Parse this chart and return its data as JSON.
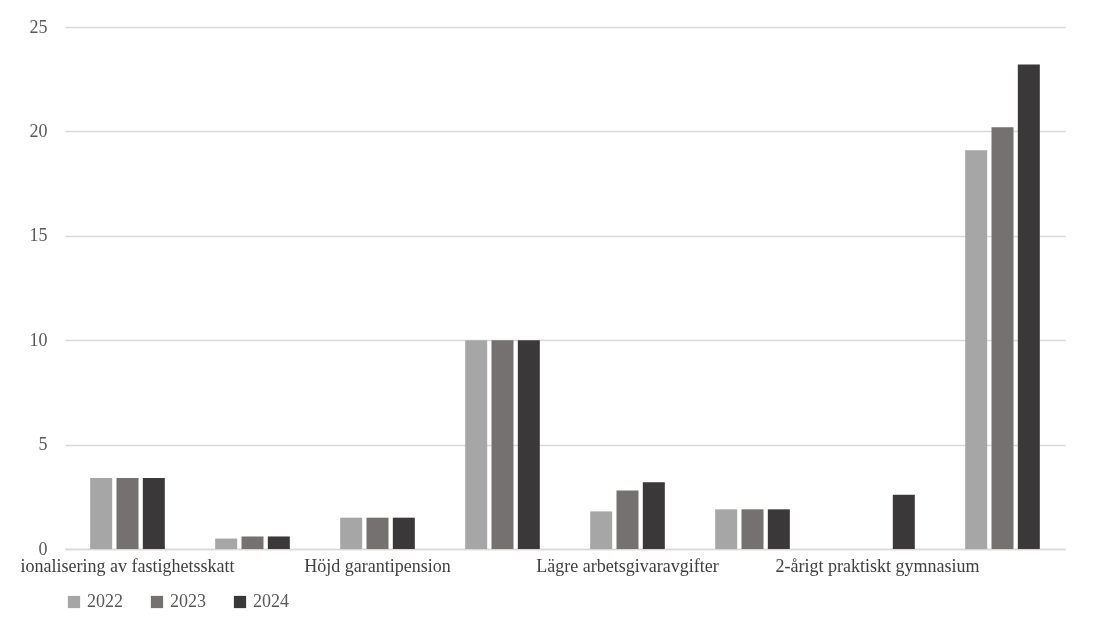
{
  "chart_data": {
    "type": "bar",
    "categories": [
      "ionalisering av fastighetsskatt",
      null,
      "Höjd garantipension",
      null,
      "Lägre arbetsgivaravgifter",
      null,
      "2-årigt praktiskt gymnasium",
      null
    ],
    "series": [
      {
        "name": "2022",
        "color": "#a6a6a6",
        "values": [
          3.4,
          0.5,
          1.5,
          10,
          1.8,
          1.9,
          null,
          19.1
        ]
      },
      {
        "name": "2023",
        "color": "#767171",
        "values": [
          3.4,
          0.6,
          1.5,
          10,
          2.8,
          1.9,
          null,
          20.2
        ]
      },
      {
        "name": "2024",
        "color": "#3a3838",
        "values": [
          3.4,
          0.6,
          1.5,
          10,
          3.2,
          1.9,
          2.6,
          23.2
        ]
      }
    ],
    "ylim": [
      0,
      25
    ],
    "yticks": [
      0,
      5,
      10,
      15,
      20,
      25
    ],
    "grid": "y",
    "legend": "bottom"
  }
}
